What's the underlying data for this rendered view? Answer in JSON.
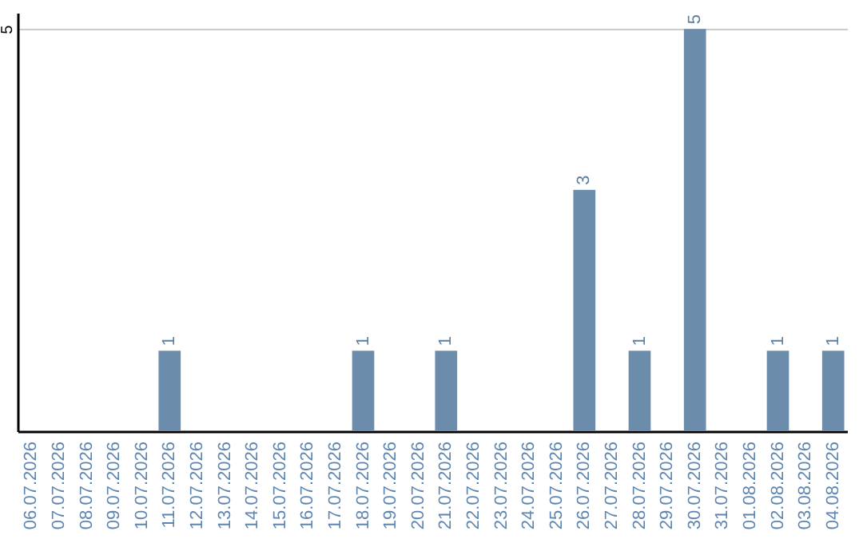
{
  "chart_data": {
    "type": "bar",
    "categories": [
      "06.07.2026",
      "07.07.2026",
      "08.07.2026",
      "09.07.2026",
      "10.07.2026",
      "11.07.2026",
      "12.07.2026",
      "13.07.2026",
      "14.07.2026",
      "15.07.2026",
      "16.07.2026",
      "17.07.2026",
      "18.07.2026",
      "19.07.2026",
      "20.07.2026",
      "21.07.2026",
      "22.07.2026",
      "23.07.2026",
      "24.07.2026",
      "25.07.2026",
      "26.07.2026",
      "27.07.2026",
      "28.07.2026",
      "29.07.2026",
      "30.07.2026",
      "31.07.2026",
      "01.08.2026",
      "02.08.2026",
      "03.08.2026",
      "04.08.2026"
    ],
    "values": [
      0,
      0,
      0,
      0,
      0,
      1,
      0,
      0,
      0,
      0,
      0,
      0,
      1,
      0,
      0,
      1,
      0,
      0,
      0,
      0,
      3,
      0,
      1,
      0,
      5,
      0,
      0,
      1,
      0,
      1
    ],
    "value_labels": [
      null,
      null,
      null,
      null,
      null,
      "1",
      null,
      null,
      null,
      null,
      null,
      null,
      "1",
      null,
      null,
      "1",
      null,
      null,
      null,
      null,
      "3",
      null,
      "1",
      null,
      "5",
      null,
      null,
      "1",
      null,
      "1"
    ],
    "color": "#6b8cab",
    "ylim": [
      0,
      5.2
    ],
    "yticks": [
      5
    ],
    "grid": "y"
  }
}
